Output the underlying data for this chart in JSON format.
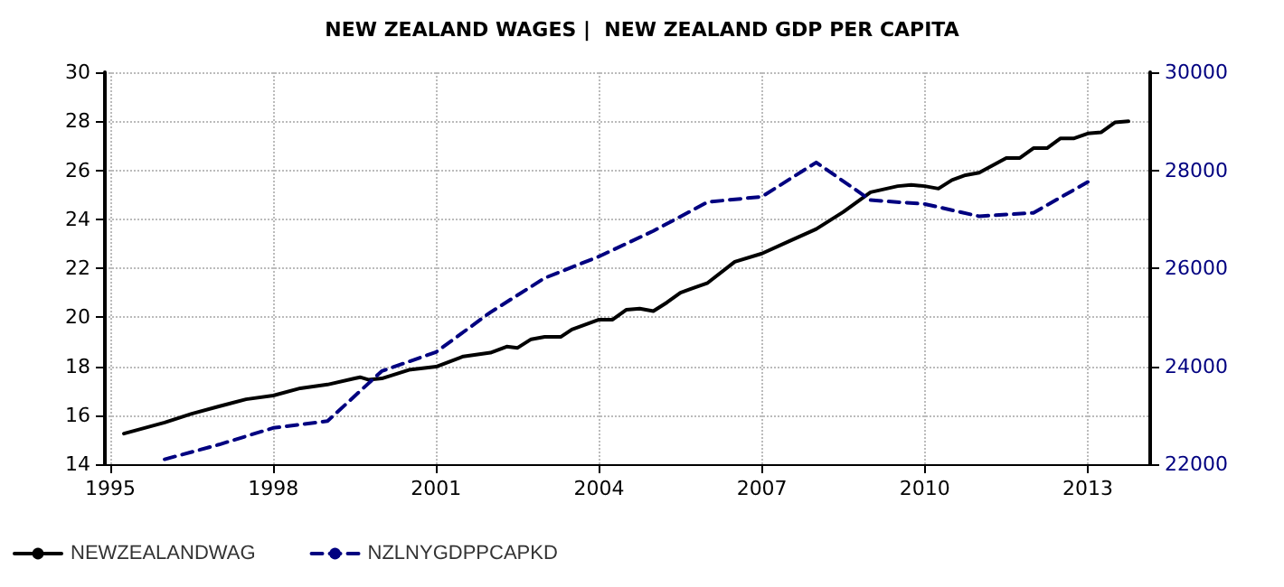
{
  "chart_data": {
    "type": "line",
    "title": "NEW ZEALAND WAGES |  NEW ZEALAND GDP PER CAPITA",
    "series": [
      {
        "name": "NEWZEALANDWAG",
        "color": "#000000",
        "line_style": "solid",
        "x": [
          1995.25,
          1996,
          1996.5,
          1997,
          1997.5,
          1998,
          1998.5,
          1999,
          1999.5,
          1999.6,
          1999.75,
          2000,
          2000.5,
          2001,
          2001.5,
          2002,
          2002.3,
          2002.5,
          2002.75,
          2003,
          2003.3,
          2003.5,
          2004,
          2004.25,
          2004.5,
          2004.75,
          2005,
          2005.25,
          2005.5,
          2005.75,
          2006,
          2006.5,
          2007,
          2007.5,
          2008,
          2008.5,
          2009,
          2009.5,
          2009.75,
          2010,
          2010.25,
          2010.5,
          2010.75,
          2011,
          2011.5,
          2011.75,
          2012,
          2012.25,
          2012.5,
          2012.75,
          2013,
          2013.25,
          2013.5,
          2013.75
        ],
        "values": [
          15.25,
          15.7,
          16.06,
          16.36,
          16.65,
          16.8,
          17.1,
          17.25,
          17.5,
          17.55,
          17.45,
          17.5,
          17.85,
          17.98,
          18.4,
          18.55,
          18.8,
          18.75,
          19.1,
          19.2,
          19.2,
          19.5,
          19.9,
          19.9,
          20.3,
          20.35,
          20.25,
          20.6,
          21.0,
          21.2,
          21.4,
          22.26,
          22.6,
          23.1,
          23.6,
          24.3,
          25.1,
          25.35,
          25.4,
          25.35,
          25.25,
          25.6,
          25.8,
          25.9,
          26.5,
          26.5,
          26.9,
          26.9,
          27.3,
          27.3,
          27.5,
          27.55,
          27.95,
          28.0
        ]
      },
      {
        "name": "NZLNYGDPPCAPKD",
        "color": "#000080",
        "line_style": "dashed",
        "axis": "y2",
        "x": [
          1996,
          1997,
          1998,
          1999,
          2000,
          2001,
          2002,
          2003,
          2004,
          2005,
          2006,
          2007,
          2008,
          2009,
          2010,
          2011,
          2012,
          2013
        ],
        "values": [
          22100,
          22400,
          22740,
          22880,
          23900,
          24290,
          25100,
          25800,
          26240,
          26760,
          27350,
          27460,
          28160,
          27390,
          27310,
          27060,
          27130,
          27760
        ]
      }
    ],
    "xlim": [
      1994.9,
      2014.15
    ],
    "xticks": [
      1995,
      1998,
      2001,
      2004,
      2007,
      2010,
      2013
    ],
    "ylim": [
      14,
      30
    ],
    "yticks": [
      14,
      16,
      18,
      20,
      22,
      24,
      26,
      28,
      30
    ],
    "y2lim": [
      22000,
      30000
    ],
    "y2ticks": [
      22000,
      24000,
      26000,
      28000,
      30000
    ],
    "grid": true,
    "legend": "bottom left",
    "marker": "none"
  }
}
